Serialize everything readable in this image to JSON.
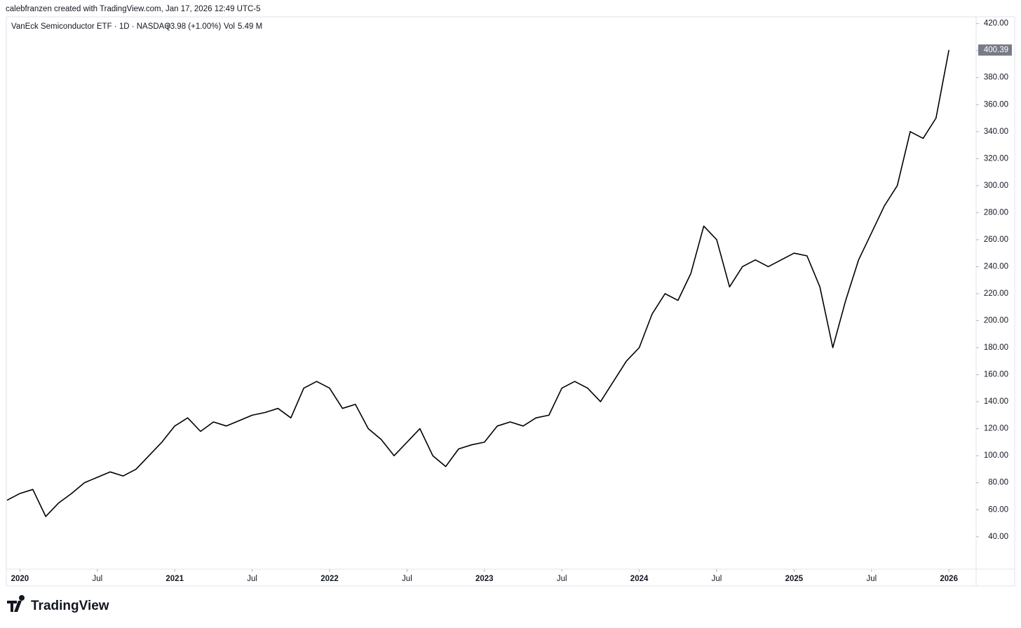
{
  "attribution": "calebfranzen created with TradingView.com, Jan 17, 2026 12:49 UTC-5",
  "watermark": "TradingView",
  "chart_data": {
    "type": "line",
    "title": "VanEck Semiconductor ETF · 1D · NASDAQ",
    "change": "+3.98 (+1.00%)",
    "volume_label": "Vol",
    "volume": "5.49 M",
    "x": [
      "2019-12",
      "2020-01",
      "2020-02",
      "2020-03",
      "2020-04",
      "2020-05",
      "2020-06",
      "2020-07",
      "2020-08",
      "2020-09",
      "2020-10",
      "2020-11",
      "2020-12",
      "2021-01",
      "2021-02",
      "2021-03",
      "2021-04",
      "2021-05",
      "2021-06",
      "2021-07",
      "2021-08",
      "2021-09",
      "2021-10",
      "2021-11",
      "2021-12",
      "2022-01",
      "2022-02",
      "2022-03",
      "2022-04",
      "2022-05",
      "2022-06",
      "2022-07",
      "2022-08",
      "2022-09",
      "2022-10",
      "2022-11",
      "2022-12",
      "2023-01",
      "2023-02",
      "2023-03",
      "2023-04",
      "2023-05",
      "2023-06",
      "2023-07",
      "2023-08",
      "2023-09",
      "2023-10",
      "2023-11",
      "2023-12",
      "2024-01",
      "2024-02",
      "2024-03",
      "2024-04",
      "2024-05",
      "2024-06",
      "2024-07",
      "2024-08",
      "2024-09",
      "2024-10",
      "2024-11",
      "2024-12",
      "2025-01",
      "2025-02",
      "2025-03",
      "2025-04",
      "2025-05",
      "2025-06",
      "2025-07",
      "2025-08",
      "2025-09",
      "2025-10",
      "2025-11",
      "2025-12",
      "2026-01"
    ],
    "series": [
      {
        "name": "VanEck Semiconductor ETF",
        "color": "#000000",
        "values": [
          67,
          72,
          75,
          55,
          65,
          72,
          80,
          84,
          88,
          85,
          90,
          100,
          110,
          122,
          128,
          118,
          125,
          122,
          126,
          130,
          132,
          135,
          128,
          150,
          155,
          150,
          135,
          138,
          120,
          112,
          100,
          110,
          120,
          100,
          92,
          105,
          108,
          110,
          122,
          125,
          122,
          128,
          130,
          150,
          155,
          150,
          140,
          155,
          170,
          180,
          205,
          220,
          215,
          235,
          270,
          260,
          225,
          240,
          245,
          240,
          245,
          250,
          248,
          225,
          180,
          215,
          245,
          265,
          285,
          300,
          340,
          335,
          350,
          400.39
        ]
      }
    ],
    "xlim": [
      "2019-12",
      "2026-03"
    ],
    "xticks": [
      {
        "value": "2020-01",
        "label": "2020"
      },
      {
        "value": "2020-07",
        "label": "Jul"
      },
      {
        "value": "2021-01",
        "label": "2021"
      },
      {
        "value": "2021-07",
        "label": "Jul"
      },
      {
        "value": "2022-01",
        "label": "2022"
      },
      {
        "value": "2022-07",
        "label": "Jul"
      },
      {
        "value": "2023-01",
        "label": "2023"
      },
      {
        "value": "2023-07",
        "label": "Jul"
      },
      {
        "value": "2024-01",
        "label": "2024"
      },
      {
        "value": "2024-07",
        "label": "Jul"
      },
      {
        "value": "2025-01",
        "label": "2025"
      },
      {
        "value": "2025-07",
        "label": "Jul"
      },
      {
        "value": "2026-01",
        "label": "2026"
      }
    ],
    "ylim": [
      16,
      425
    ],
    "yticks": [
      {
        "value": 40,
        "label": "40.00"
      },
      {
        "value": 60,
        "label": "60.00"
      },
      {
        "value": 80,
        "label": "80.00"
      },
      {
        "value": 100,
        "label": "100.00"
      },
      {
        "value": 120,
        "label": "120.00"
      },
      {
        "value": 140,
        "label": "140.00"
      },
      {
        "value": 160,
        "label": "160.00"
      },
      {
        "value": 180,
        "label": "180.00"
      },
      {
        "value": 200,
        "label": "200.00"
      },
      {
        "value": 220,
        "label": "220.00"
      },
      {
        "value": 240,
        "label": "240.00"
      },
      {
        "value": 260,
        "label": "260.00"
      },
      {
        "value": 280,
        "label": "280.00"
      },
      {
        "value": 300,
        "label": "300.00"
      },
      {
        "value": 320,
        "label": "320.00"
      },
      {
        "value": 340,
        "label": "340.00"
      },
      {
        "value": 360,
        "label": "360.00"
      },
      {
        "value": 380,
        "label": "380.00"
      },
      {
        "value": 400,
        "label": "400.00"
      },
      {
        "value": 420,
        "label": "420.00"
      }
    ],
    "grid": false,
    "axis_side": "right"
  }
}
